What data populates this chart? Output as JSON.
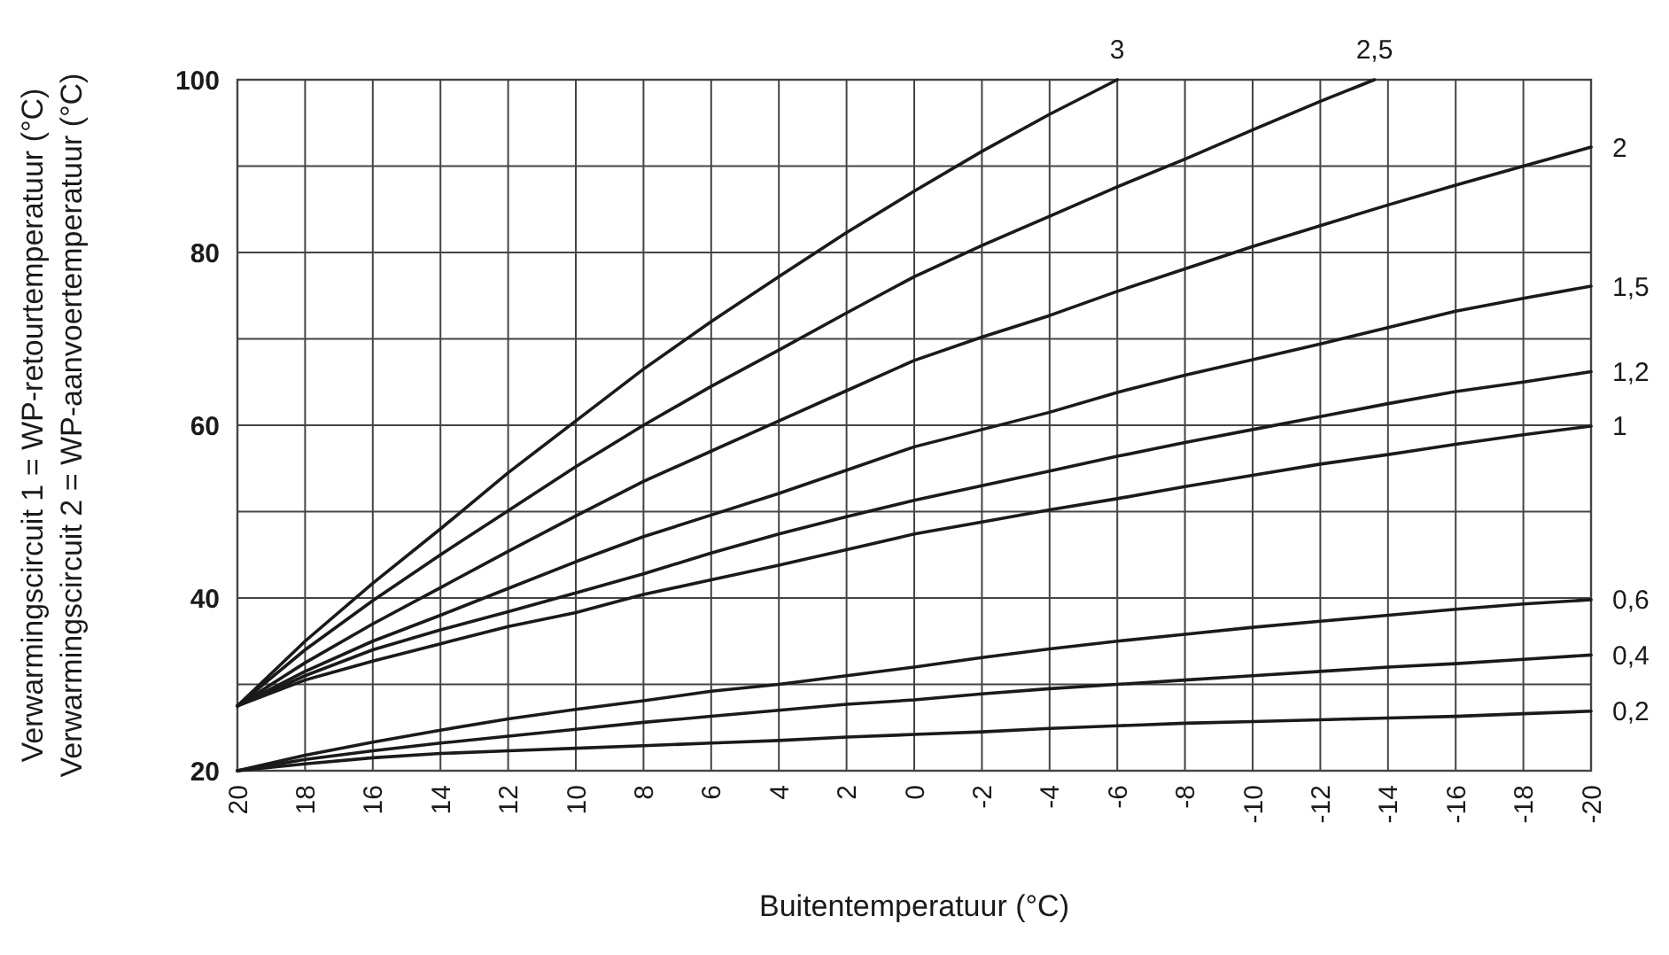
{
  "chart_data": {
    "type": "line",
    "xlabel": "Buitentemperatuur (°C)",
    "ylabel": "Verwarmingscircuit 1 = WP-retourtemperatuur (°C)\nVerwarmingscircuit 2 = WP-aanvoertemperatuur (°C)",
    "xlim": [
      20,
      -20
    ],
    "xticks": [
      20,
      18,
      16,
      14,
      12,
      10,
      8,
      6,
      4,
      2,
      0,
      -2,
      -4,
      -6,
      -8,
      -10,
      -12,
      -14,
      -16,
      -18,
      -20
    ],
    "ylim": [
      20,
      100
    ],
    "yticks": [
      20,
      {
        "value": 30,
        "label": null
      },
      40,
      {
        "value": 50,
        "label": null
      },
      60,
      {
        "value": 70,
        "label": null
      },
      80,
      {
        "value": 90,
        "label": null
      },
      100
    ],
    "grid": true,
    "line_style": "solid",
    "marker": "none",
    "series": [
      {
        "name": "3",
        "color": "#1a1a1a",
        "x": [
          20,
          18,
          16,
          14,
          12,
          10,
          8,
          6,
          4,
          2,
          0,
          -2,
          -4,
          -6
        ],
        "values": [
          27.5,
          35,
          41.7,
          48,
          54.5,
          60.5,
          66.5,
          72,
          77.2,
          82.3,
          87.1,
          91.7,
          96,
          100
        ]
      },
      {
        "name": "2,5",
        "color": "#1a1a1a",
        "x": [
          20,
          18,
          16,
          14,
          12,
          10,
          8,
          6,
          4,
          2,
          0,
          -2,
          -4,
          -6,
          -8,
          -10,
          -12,
          -13.6
        ],
        "values": [
          27.5,
          34,
          39.7,
          45,
          50.1,
          55.2,
          60,
          64.5,
          68.7,
          73,
          77.2,
          80.8,
          84.2,
          87.6,
          90.8,
          94.2,
          97.5,
          100
        ]
      },
      {
        "name": "2",
        "color": "#1a1a1a",
        "x": [
          20,
          18,
          16,
          14,
          12,
          10,
          8,
          6,
          4,
          2,
          0,
          -2,
          -4,
          -6,
          -8,
          -10,
          -12,
          -14,
          -16,
          -18,
          -20
        ],
        "values": [
          27.5,
          32.5,
          37,
          41.2,
          45.4,
          49.5,
          53.5,
          57,
          60.5,
          64,
          67.5,
          70.2,
          72.7,
          75.5,
          78.1,
          80.7,
          83.1,
          85.5,
          87.8,
          90,
          92.2
        ]
      },
      {
        "name": "1,5",
        "color": "#1a1a1a",
        "x": [
          20,
          18,
          16,
          14,
          12,
          10,
          8,
          6,
          4,
          2,
          0,
          -2,
          -4,
          -6,
          -8,
          -10,
          -12,
          -14,
          -16,
          -18,
          -20
        ],
        "values": [
          27.5,
          31.5,
          35,
          38,
          41.1,
          44.2,
          47.1,
          49.6,
          52.1,
          54.8,
          57.5,
          59.5,
          61.5,
          63.8,
          65.8,
          67.6,
          69.4,
          71.3,
          73.2,
          74.7,
          76.1
        ]
      },
      {
        "name": "1,2",
        "color": "#1a1a1a",
        "x": [
          20,
          18,
          16,
          14,
          12,
          10,
          8,
          6,
          4,
          2,
          0,
          -2,
          -4,
          -6,
          -8,
          -10,
          -12,
          -14,
          -16,
          -18,
          -20
        ],
        "values": [
          27.5,
          31,
          34,
          36.3,
          38.4,
          40.6,
          42.8,
          45.2,
          47.4,
          49.4,
          51.3,
          53,
          54.7,
          56.4,
          58,
          59.5,
          61,
          62.5,
          63.9,
          65,
          66.2
        ]
      },
      {
        "name": "1",
        "color": "#1a1a1a",
        "x": [
          20,
          18,
          16,
          14,
          12,
          10,
          8,
          6,
          4,
          2,
          0,
          -2,
          -4,
          -6,
          -8,
          -10,
          -12,
          -14,
          -16,
          -18,
          -20
        ],
        "values": [
          27.5,
          30.5,
          32.7,
          34.7,
          36.7,
          38.3,
          40.4,
          42.1,
          43.8,
          45.6,
          47.4,
          48.8,
          50.2,
          51.5,
          52.9,
          54.2,
          55.5,
          56.6,
          57.8,
          58.9,
          59.9
        ]
      },
      {
        "name": "0,6",
        "color": "#1a1a1a",
        "x": [
          20,
          18,
          16,
          14,
          12,
          10,
          8,
          6,
          4,
          2,
          0,
          -2,
          -4,
          -6,
          -8,
          -10,
          -12,
          -14,
          -16,
          -18,
          -20
        ],
        "values": [
          20,
          21.8,
          23.3,
          24.7,
          26,
          27.1,
          28.1,
          29.2,
          30,
          31,
          32,
          33.1,
          34.1,
          35,
          35.8,
          36.6,
          37.3,
          38,
          38.7,
          39.3,
          39.8
        ]
      },
      {
        "name": "0,4",
        "color": "#1a1a1a",
        "x": [
          20,
          18,
          16,
          14,
          12,
          10,
          8,
          6,
          4,
          2,
          0,
          -2,
          -4,
          -6,
          -8,
          -10,
          -12,
          -14,
          -16,
          -18,
          -20
        ],
        "values": [
          20,
          21.3,
          22.3,
          23.2,
          24,
          24.8,
          25.6,
          26.3,
          27,
          27.7,
          28.2,
          28.9,
          29.5,
          30,
          30.5,
          31,
          31.5,
          32,
          32.4,
          32.9,
          33.4
        ]
      },
      {
        "name": "0,2",
        "color": "#1a1a1a",
        "x": [
          20,
          18,
          16,
          14,
          12,
          10,
          8,
          6,
          4,
          2,
          0,
          -2,
          -4,
          -6,
          -8,
          -10,
          -12,
          -14,
          -16,
          -18,
          -20
        ],
        "values": [
          20,
          20.8,
          21.5,
          22,
          22.3,
          22.6,
          22.9,
          23.2,
          23.5,
          23.9,
          24.2,
          24.5,
          24.9,
          25.2,
          25.5,
          25.7,
          25.9,
          26.1,
          26.3,
          26.6,
          26.9
        ]
      }
    ]
  }
}
